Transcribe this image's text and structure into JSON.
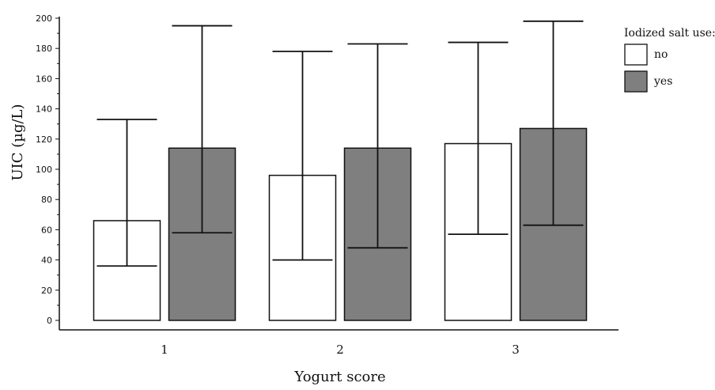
{
  "chart_data": {
    "type": "bar",
    "xlabel": "Yogurt score",
    "ylabel": "UIC (µg/L)",
    "ylim": [
      0,
      200
    ],
    "yticks": [
      "0",
      "20",
      "40",
      "60",
      "80",
      "100",
      "120",
      "140",
      "160",
      "180",
      "200"
    ],
    "categories": [
      "1",
      "2",
      "3"
    ],
    "legend": {
      "title": "Iodized salt use:",
      "position": "top-right"
    },
    "series": [
      {
        "name": "no",
        "color": "#ffffff",
        "median": [
          66,
          96,
          117
        ],
        "lower": [
          36,
          40,
          57
        ],
        "upper": [
          133,
          178,
          184
        ]
      },
      {
        "name": "yes",
        "color": "#7f7f7f",
        "median": [
          114,
          114,
          127
        ],
        "lower": [
          58,
          48,
          63
        ],
        "upper": [
          195,
          183,
          198
        ]
      }
    ]
  }
}
